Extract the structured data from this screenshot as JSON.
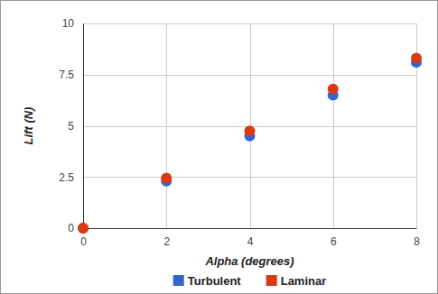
{
  "chart_data": {
    "type": "scatter",
    "x_label": "Alpha (degrees)",
    "y_label": "Lift (N)",
    "x": [
      0,
      2,
      4,
      6,
      8
    ],
    "series": [
      {
        "name": "Turbulent",
        "color": "#3366cc",
        "values": [
          0,
          2.3,
          4.5,
          6.5,
          8.1
        ]
      },
      {
        "name": "Laminar",
        "color": "#dc3912",
        "values": [
          0,
          2.45,
          4.75,
          6.8,
          8.3
        ]
      }
    ],
    "xlim": [
      0,
      8
    ],
    "xticks": [
      0,
      2,
      4,
      6,
      8
    ],
    "ylim": [
      0,
      10
    ],
    "yticks": [
      0,
      2.5,
      5,
      7.5,
      10
    ],
    "grid": true,
    "legend": "bottom",
    "marker": "circle"
  }
}
